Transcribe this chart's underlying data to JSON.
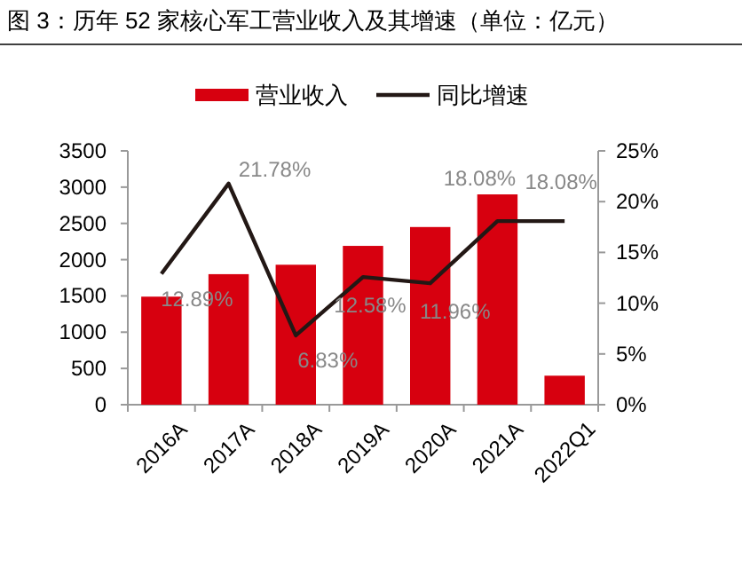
{
  "chart_data": {
    "type": "bar",
    "title": "图 3：历年 52 家核心军工营业收入及其增速（单位：亿元）",
    "categories": [
      "2016A",
      "2017A",
      "2018A",
      "2019A",
      "2020A",
      "2021A",
      "2022Q1"
    ],
    "series": [
      {
        "name": "营业收入",
        "color": "#d7000f",
        "values": [
          1490,
          1800,
          1930,
          2190,
          2450,
          2900,
          400
        ]
      },
      {
        "name": "同比增速",
        "type": "line",
        "axis": "y2",
        "color": "#231815",
        "values": [
          12.89,
          21.78,
          6.83,
          12.58,
          11.96,
          18.08,
          18.08
        ],
        "value_labels": [
          "12.89%",
          "21.78%",
          "6.83%",
          "12.58%",
          "11.96%",
          "18.08%",
          "18.08%"
        ]
      }
    ],
    "ylim": [
      0,
      3500
    ],
    "yticks": [
      0,
      500,
      1000,
      1500,
      2000,
      2500,
      3000,
      3500
    ],
    "y2lim": [
      0,
      25
    ],
    "y2ticks": [
      {
        "value": 0,
        "label": "0%"
      },
      {
        "value": 5,
        "label": "5%"
      },
      {
        "value": 10,
        "label": "10%"
      },
      {
        "value": 15,
        "label": "15%"
      },
      {
        "value": 20,
        "label": "20%"
      },
      {
        "value": 25,
        "label": "25%"
      }
    ],
    "legend": "top",
    "grid": false,
    "marker": "none",
    "line_style": "solid"
  }
}
